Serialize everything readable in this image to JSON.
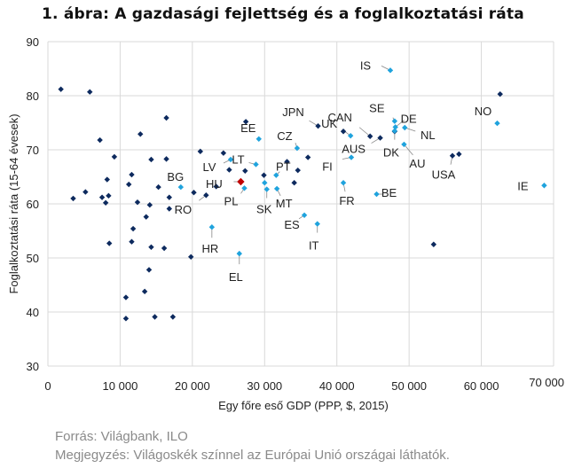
{
  "chart_data": {
    "type": "scatter",
    "title": "1. ábra: A gazdasági fejlettség és a foglalkoztatási ráta",
    "xlabel": "Egy főre eső GDP (PPP, $, 2015)",
    "ylabel": "Foglalkoztatási ráta (15-64 évesek)",
    "xlim": [
      0,
      70000
    ],
    "ylim": [
      30,
      90
    ],
    "xticks": [
      0,
      10000,
      20000,
      30000,
      40000,
      50000,
      60000,
      70000
    ],
    "xtick_labels": [
      "0",
      "10 000",
      "20 000",
      "30 000",
      "40 000",
      "50 000",
      "60 000",
      "70 000"
    ],
    "yticks": [
      30,
      40,
      50,
      60,
      70,
      80,
      90
    ],
    "ytick_labels": [
      "30",
      "40",
      "50",
      "60",
      "70",
      "80",
      "90"
    ],
    "grid": true,
    "colors": {
      "world": "#0d2a5e",
      "eu": "#1fa3dd",
      "hu": "#c00000"
    },
    "series": [
      {
        "group": "world",
        "points": [
          [
            1800,
            81.2
          ],
          [
            5800,
            80.7
          ],
          [
            7200,
            71.8
          ],
          [
            3500,
            61
          ],
          [
            5200,
            62.2
          ],
          [
            7500,
            61.2
          ],
          [
            8000,
            60.2
          ],
          [
            8400,
            61.5
          ],
          [
            8200,
            64.5
          ],
          [
            9200,
            68.7
          ],
          [
            8500,
            52.7
          ],
          [
            11600,
            65.4
          ],
          [
            11200,
            63.6
          ],
          [
            12400,
            60.3
          ],
          [
            12800,
            72.9
          ],
          [
            13600,
            57.6
          ],
          [
            14300,
            68.2
          ],
          [
            14100,
            59.8
          ],
          [
            15300,
            63.1
          ],
          [
            16400,
            75.9
          ],
          [
            16400,
            68.3
          ],
          [
            16800,
            61.2
          ],
          [
            16800,
            59.1
          ],
          [
            11800,
            55.4
          ],
          [
            11600,
            53
          ],
          [
            14300,
            52
          ],
          [
            16100,
            51.8
          ],
          [
            14000,
            47.8
          ],
          [
            13400,
            43.8
          ],
          [
            10800,
            42.7
          ],
          [
            10800,
            38.8
          ],
          [
            14800,
            39.1
          ],
          [
            17300,
            39.1
          ],
          [
            19800,
            50.2
          ],
          [
            20200,
            62.1
          ],
          [
            21900,
            61.6
          ],
          [
            21100,
            69.7
          ],
          [
            23300,
            63.2
          ],
          [
            24300,
            69.4
          ],
          [
            25100,
            66.3
          ],
          [
            27400,
            75.2
          ],
          [
            27300,
            66.1
          ],
          [
            29900,
            65.3
          ],
          [
            33100,
            67.8
          ],
          [
            34600,
            66.2
          ],
          [
            34100,
            63.9
          ],
          [
            36000,
            68.6
          ],
          [
            37400,
            74.4
          ],
          [
            40900,
            73.4
          ],
          [
            44600,
            72.5
          ],
          [
            46000,
            72.2
          ],
          [
            48000,
            73.4
          ],
          [
            53400,
            52.5
          ],
          [
            56000,
            68.9
          ],
          [
            56900,
            69.2
          ],
          [
            62600,
            80.3
          ]
        ]
      },
      {
        "group": "eu",
        "points": [
          {
            "x": 47400,
            "y": 84.7,
            "label": "IS"
          },
          {
            "x": 48000,
            "y": 75.3,
            "label": "SE"
          },
          {
            "x": 48100,
            "y": 74.2,
            "label": "DE"
          },
          {
            "x": 48000,
            "y": 73.5,
            "label": "DK"
          },
          {
            "x": 49400,
            "y": 74.1,
            "label": "NL"
          },
          {
            "x": 49300,
            "y": 71,
            "label": "AU"
          },
          {
            "x": 62200,
            "y": 74.9,
            "label": "NO"
          },
          {
            "x": 68700,
            "y": 63.4,
            "label": "IE"
          },
          {
            "x": 41900,
            "y": 72.6,
            "label": "UK"
          },
          {
            "x": 42000,
            "y": 68.6,
            "label": "FI"
          },
          {
            "x": 40900,
            "y": 63.9,
            "label": "FR"
          },
          {
            "x": 45500,
            "y": 61.8,
            "label": "BE"
          },
          {
            "x": 34500,
            "y": 70.3,
            "label": "CZ"
          },
          {
            "x": 29200,
            "y": 72,
            "label": "EE"
          },
          {
            "x": 28800,
            "y": 67.3,
            "label": "LT"
          },
          {
            "x": 25300,
            "y": 68.2,
            "label": "LV"
          },
          {
            "x": 31600,
            "y": 65.3,
            "label": "PT"
          },
          {
            "x": 30000,
            "y": 63.9,
            "label": ""
          },
          {
            "x": 31700,
            "y": 62.8,
            "label": "MT"
          },
          {
            "x": 30300,
            "y": 62.7,
            "label": "SK"
          },
          {
            "x": 27200,
            "y": 62.9,
            "label": "PL"
          },
          {
            "x": 18400,
            "y": 63.1,
            "label": "BG"
          },
          {
            "x": 22700,
            "y": 55.7,
            "label": "HR"
          },
          {
            "x": 26500,
            "y": 50.8,
            "label": "EL"
          },
          {
            "x": 35500,
            "y": 57.9,
            "label": "ES"
          },
          {
            "x": 37300,
            "y": 56.3,
            "label": "IT"
          }
        ]
      },
      {
        "group": "hu",
        "points": [
          {
            "x": 26700,
            "y": 64.1,
            "label": "HU"
          }
        ]
      }
    ],
    "world_labels": [
      {
        "x": 56000,
        "y": 68.9,
        "label": "USA"
      },
      {
        "x": 37400,
        "y": 74.4,
        "label": "JPN"
      },
      {
        "x": 44600,
        "y": 72.5,
        "label": "CAN"
      },
      {
        "x": 46000,
        "y": 72.2,
        "label": "AUS"
      },
      {
        "x": 21900,
        "y": 61.6,
        "label": "RO"
      }
    ]
  },
  "footer": {
    "source": "Forrás: Világbank, ILO",
    "note": "Megjegyzés: Világoskék színnel az Európai Unió országai láthatók."
  }
}
